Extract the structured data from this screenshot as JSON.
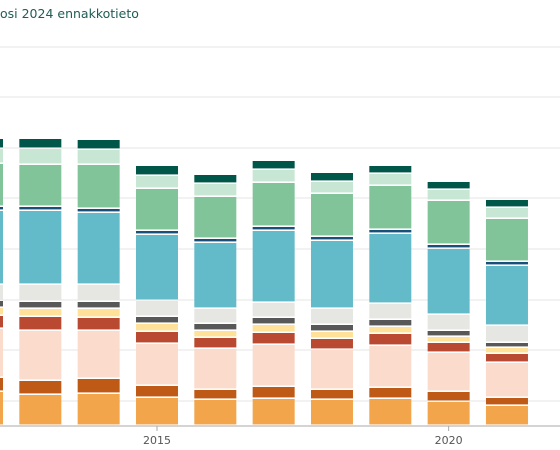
{
  "title": "osi 2024 ennakkotieto",
  "colors": {
    "background": "#ffffff",
    "gridline": "#e6e6e6",
    "axis": "#aaaaaa",
    "title": "#1f5c55"
  },
  "chart_data": {
    "type": "bar",
    "stacked": true,
    "title": "osi 2024 ennakkotieto",
    "xlabel": "",
    "ylabel": "",
    "x_tick_labels": [
      {
        "label": "2015",
        "index": 3
      },
      {
        "label": "2020",
        "index": 8
      }
    ],
    "years": [
      2012,
      2013,
      2014,
      2015,
      2016,
      2017,
      2018,
      2019,
      2020,
      2021
    ],
    "first_bar_partial": true,
    "last_bar_partial": true,
    "grid": true,
    "series": [
      {
        "color": "#f2a54a",
        "values": [
          34,
          31,
          32,
          28,
          26,
          27,
          26,
          27,
          24,
          20
        ]
      },
      {
        "color": "#bf5a16",
        "values": [
          14,
          14,
          15,
          12,
          10,
          12,
          10,
          11,
          10,
          8
        ]
      },
      {
        "color": "#fadbcc",
        "values": [
          49,
          50,
          48,
          42,
          41,
          42,
          40,
          42,
          39,
          35
        ]
      },
      {
        "color": "#b94a31",
        "values": [
          13,
          14,
          13,
          12,
          11,
          12,
          11,
          12,
          10,
          9
        ]
      },
      {
        "color": "#ffe19a",
        "values": [
          8,
          8,
          9,
          8,
          7,
          8,
          7,
          7,
          6,
          6
        ]
      },
      {
        "color": "#585858",
        "values": [
          7,
          7,
          7,
          7,
          7,
          7,
          7,
          7,
          6,
          5
        ]
      },
      {
        "color": "#e6e6e2",
        "values": [
          16,
          17,
          17,
          16,
          15,
          15,
          16,
          16,
          16,
          17
        ]
      },
      {
        "color": "#63bbca",
        "values": [
          74,
          74,
          72,
          66,
          66,
          72,
          68,
          70,
          66,
          60
        ]
      },
      {
        "color": "#19507a",
        "values": [
          4,
          4,
          4,
          4,
          4,
          4,
          4,
          4,
          4,
          4
        ]
      },
      {
        "color": "#82c49a",
        "values": [
          43,
          42,
          44,
          42,
          42,
          44,
          43,
          44,
          44,
          43
        ]
      },
      {
        "color": "#c8e6d4",
        "values": [
          15,
          16,
          15,
          13,
          13,
          13,
          12,
          12,
          11,
          11
        ]
      },
      {
        "color": "#005648",
        "values": [
          10,
          10,
          10,
          10,
          9,
          9,
          9,
          8,
          8,
          8
        ]
      }
    ]
  }
}
